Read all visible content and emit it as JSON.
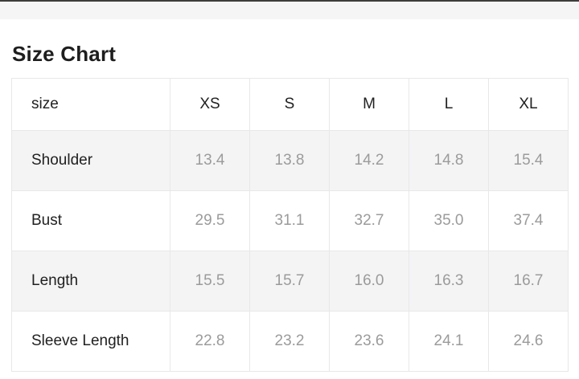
{
  "page": {
    "title": "Size Chart"
  },
  "colors": {
    "alt_row_bg": "#f4f4f5",
    "table_border": "#e8e8e8",
    "top_strip_bg": "#f5f5f6",
    "label_text": "#212121",
    "value_text": "#9b9b9b"
  },
  "table": {
    "header": [
      "size",
      "XS",
      "S",
      "M",
      "L",
      "XL"
    ],
    "rows": [
      {
        "label": "Shoulder",
        "values": [
          "13.4",
          "13.8",
          "14.2",
          "14.8",
          "15.4"
        ]
      },
      {
        "label": "Bust",
        "values": [
          "29.5",
          "31.1",
          "32.7",
          "35.0",
          "37.4"
        ]
      },
      {
        "label": "Length",
        "values": [
          "15.5",
          "15.7",
          "16.0",
          "16.3",
          "16.7"
        ]
      },
      {
        "label": "Sleeve Length",
        "values": [
          "22.8",
          "23.2",
          "23.6",
          "24.1",
          "24.6"
        ]
      }
    ]
  }
}
